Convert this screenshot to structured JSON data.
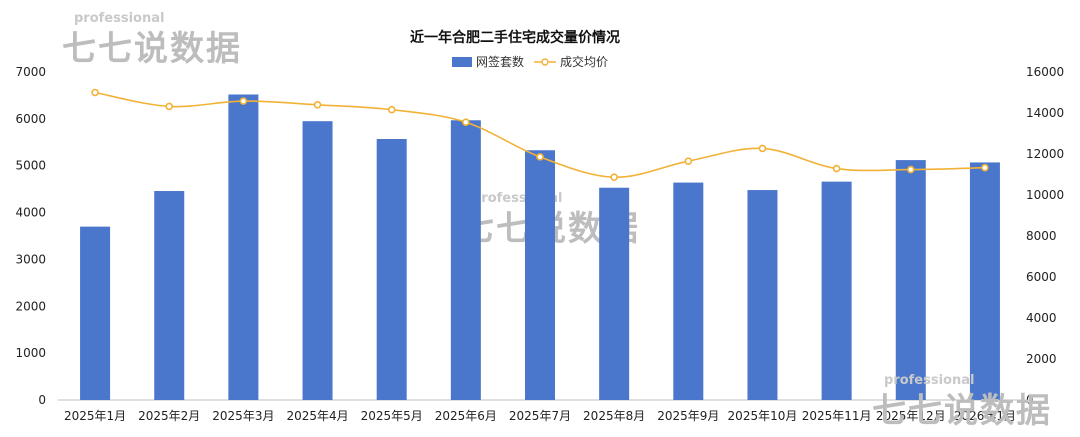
{
  "chart_data": {
    "type": "bar+line",
    "title": "近一年合肥二手住宅成交量价情况",
    "categories": [
      "2025年1月",
      "2025年2月",
      "2025年3月",
      "2025年4月",
      "2025年5月",
      "2025年6月",
      "2025年7月",
      "2025年8月",
      "2025年9月",
      "2025年10月",
      "2025年11月",
      "2025年12月",
      "2026年1月"
    ],
    "series": [
      {
        "name": "网签套数",
        "type": "bar",
        "axis": "left",
        "color": "#4a76cc",
        "values": [
          3700,
          4460,
          6520,
          5950,
          5570,
          5970,
          5330,
          4530,
          4640,
          4480,
          4660,
          5120,
          5070
        ]
      },
      {
        "name": "成交均价",
        "type": "line",
        "axis": "right",
        "color": "#f2b236",
        "values": [
          15000,
          14320,
          14580,
          14400,
          14160,
          13550,
          11860,
          10870,
          11650,
          12270,
          11290,
          11240,
          11330
        ]
      }
    ],
    "y_left": {
      "min": 0,
      "max": 7000,
      "ticks": [
        0,
        1000,
        2000,
        3000,
        4000,
        5000,
        6000,
        7000
      ]
    },
    "y_right": {
      "min": 0,
      "max": 16000,
      "ticks": [
        0,
        2000,
        4000,
        6000,
        8000,
        10000,
        12000,
        14000,
        16000
      ]
    },
    "legend": "top-center",
    "grid": false
  },
  "watermark": {
    "small": "professional",
    "big": "七七说数据"
  }
}
